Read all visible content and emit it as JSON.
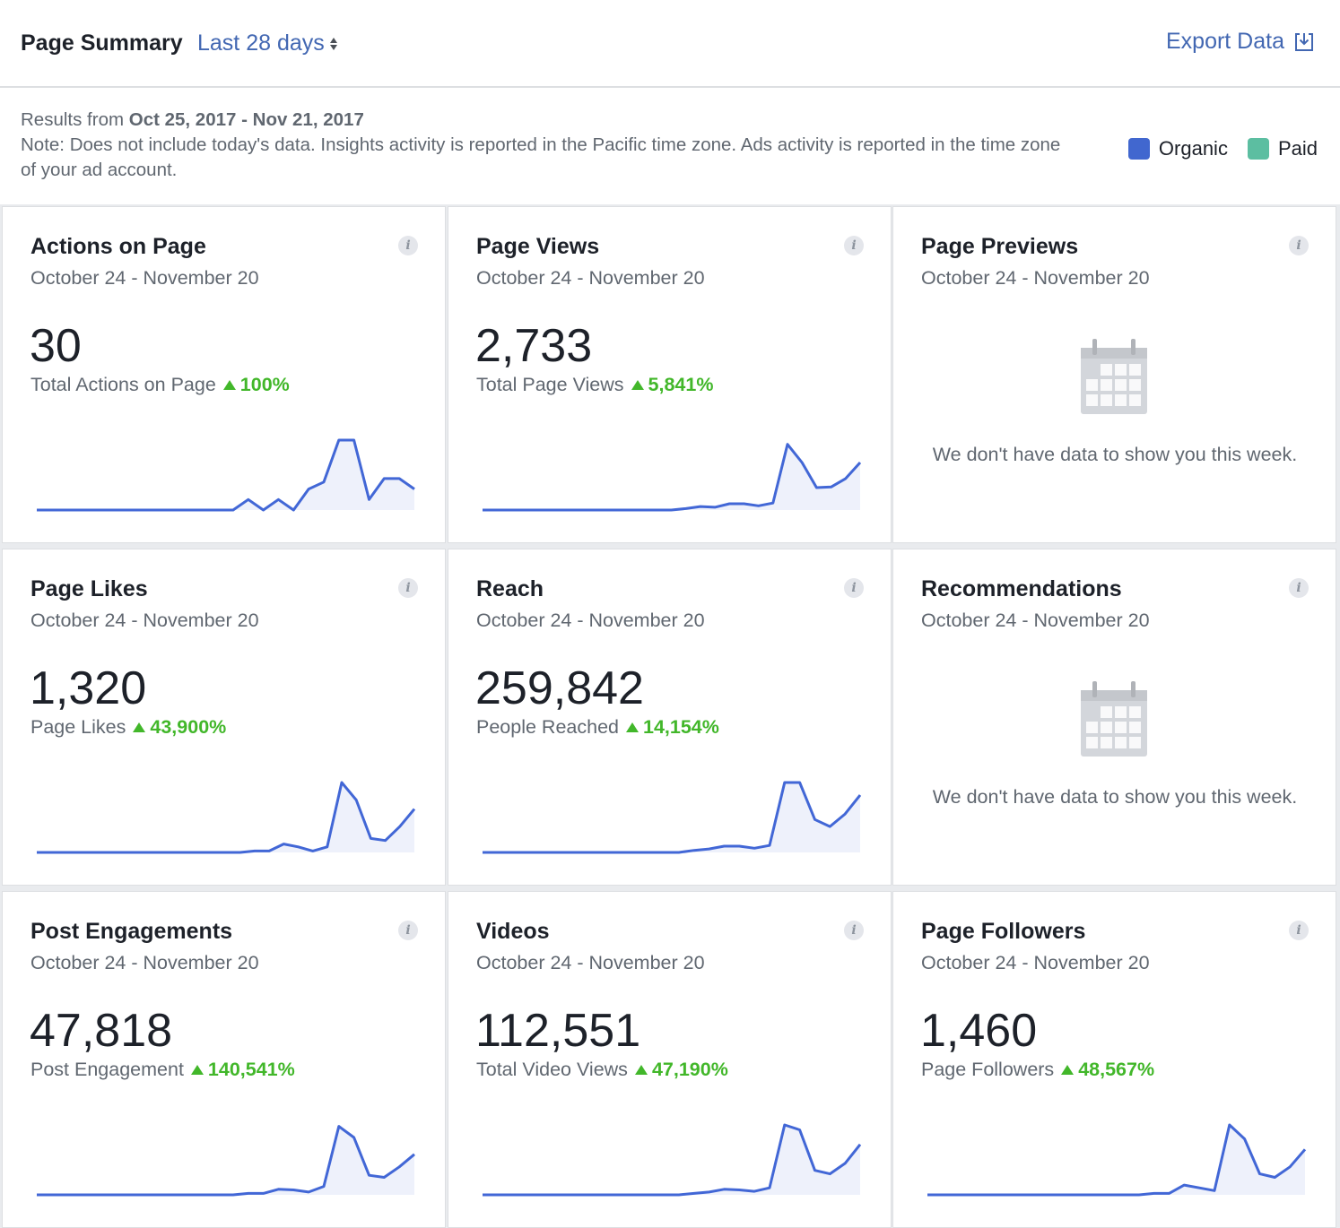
{
  "header": {
    "title": "Page Summary",
    "range_label": "Last 28 days",
    "export_label": "Export Data"
  },
  "note": {
    "results_prefix": "Results from ",
    "results_range": "Oct 25, 2017 - Nov 21, 2017",
    "text": "Note: Does not include today's data. Insights activity is reported in the Pacific time zone. Ads activity is reported in the time zone of your ad account."
  },
  "legend": [
    {
      "label": "Organic",
      "color": "#4167cf"
    },
    {
      "label": "Paid",
      "color": "#5cbea1"
    }
  ],
  "colors": {
    "line": "#4267d6",
    "fill": "#eef1fb",
    "delta": "#42b72a"
  },
  "cards": [
    {
      "title": "Actions on Page",
      "date": "October 24 - November 20",
      "value": "30",
      "sub": "Total Actions on Page",
      "delta": "100%",
      "series": [
        0,
        0,
        0,
        0,
        0,
        0,
        0,
        0,
        0,
        0,
        0,
        0,
        0,
        0,
        0.15,
        0,
        0.15,
        0,
        0.3,
        0.4,
        1,
        1,
        0.15,
        0.45,
        0.45,
        0.3
      ]
    },
    {
      "title": "Page Views",
      "date": "October 24 - November 20",
      "value": "2,733",
      "sub": "Total Page Views",
      "delta": "5,841%",
      "series": [
        0,
        0,
        0,
        0,
        0,
        0,
        0,
        0,
        0,
        0,
        0,
        0,
        0,
        0,
        0.02,
        0.05,
        0.04,
        0.09,
        0.09,
        0.06,
        0.1,
        0.94,
        0.68,
        0.32,
        0.33,
        0.45,
        0.68
      ]
    },
    {
      "title": "Page Previews",
      "date": "October 24 - November 20",
      "empty": "We don't have data to show you this week."
    },
    {
      "title": "Page Likes",
      "date": "October 24 - November 20",
      "value": "1,320",
      "sub": "Page Likes",
      "delta": "43,900%",
      "series": [
        0,
        0,
        0,
        0,
        0,
        0,
        0,
        0,
        0,
        0,
        0,
        0,
        0,
        0,
        0,
        0.02,
        0.02,
        0.12,
        0.08,
        0.02,
        0.08,
        1,
        0.75,
        0.2,
        0.17,
        0.37,
        0.62
      ]
    },
    {
      "title": "Reach",
      "date": "October 24 - November 20",
      "value": "259,842",
      "sub": "People Reached",
      "delta": "14,154%",
      "series": [
        0,
        0,
        0,
        0,
        0,
        0,
        0,
        0,
        0,
        0,
        0,
        0,
        0,
        0,
        0.03,
        0.05,
        0.09,
        0.09,
        0.06,
        0.1,
        1,
        1,
        0.47,
        0.37,
        0.55,
        0.82
      ]
    },
    {
      "title": "Recommendations",
      "date": "October 24 - November 20",
      "empty": "We don't have data to show you this week."
    },
    {
      "title": "Post Engagements",
      "date": "October 24 - November 20",
      "value": "47,818",
      "sub": "Post Engagement",
      "delta": "140,541%",
      "series": [
        0,
        0,
        0,
        0,
        0,
        0,
        0,
        0,
        0,
        0,
        0,
        0,
        0,
        0,
        0.02,
        0.02,
        0.08,
        0.07,
        0.04,
        0.12,
        0.98,
        0.82,
        0.28,
        0.25,
        0.4,
        0.58
      ]
    },
    {
      "title": "Videos",
      "date": "October 24 - November 20",
      "value": "112,551",
      "sub": "Total Video Views",
      "delta": "47,190%",
      "series": [
        0,
        0,
        0,
        0,
        0,
        0,
        0,
        0,
        0,
        0,
        0,
        0,
        0,
        0,
        0.02,
        0.04,
        0.08,
        0.07,
        0.05,
        0.1,
        1,
        0.93,
        0.35,
        0.3,
        0.45,
        0.72
      ]
    },
    {
      "title": "Page Followers",
      "date": "October 24 - November 20",
      "value": "1,460",
      "sub": "Page Followers",
      "delta": "48,567%",
      "series": [
        0,
        0,
        0,
        0,
        0,
        0,
        0,
        0,
        0,
        0,
        0,
        0,
        0,
        0,
        0,
        0.02,
        0.02,
        0.14,
        0.1,
        0.06,
        1,
        0.8,
        0.3,
        0.25,
        0.4,
        0.65
      ]
    }
  ]
}
